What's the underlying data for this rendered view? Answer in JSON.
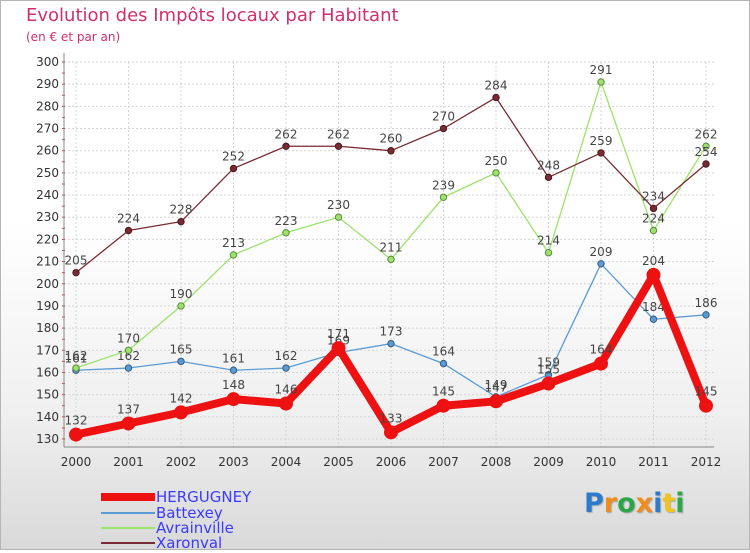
{
  "title": "Evolution des Impôts locaux par Habitant",
  "subtitle": "(en € et par an)",
  "brand": {
    "text": "Proxiti",
    "letters": [
      "P",
      "r",
      "o",
      "x",
      "i",
      "t",
      "i"
    ],
    "colors": [
      "#2c7ac9",
      "#f08c1e",
      "#2ca64b",
      "#f08c1e",
      "#2c7ac9",
      "#f0c31e",
      "#2ca64b"
    ]
  },
  "chart_data": {
    "type": "line",
    "title": "Evolution des Impôts locaux par Habitant",
    "subtitle": "(en € et par an)",
    "xlabel": "",
    "ylabel": "",
    "ylim": [
      130,
      300
    ],
    "ytick_step": 10,
    "grid": true,
    "x": [
      "2000",
      "2001",
      "2002",
      "2003",
      "2004",
      "2005",
      "2006",
      "2007",
      "2008",
      "2009",
      "2010",
      "2011",
      "2012"
    ],
    "series": [
      {
        "name": "HERGUGNEY",
        "color": "#ee1111",
        "emphasis": true,
        "values": [
          132,
          137,
          142,
          148,
          146,
          171,
          133,
          145,
          147,
          155,
          164,
          204,
          145
        ]
      },
      {
        "name": "Battexey",
        "color": "#5b9bd5",
        "emphasis": false,
        "values": [
          161,
          162,
          165,
          161,
          162,
          169,
          173,
          164,
          149,
          159,
          209,
          184,
          186
        ]
      },
      {
        "name": "Avrainville",
        "color": "#9be36a",
        "emphasis": false,
        "values": [
          162,
          170,
          190,
          213,
          223,
          230,
          211,
          239,
          250,
          214,
          291,
          224,
          262
        ]
      },
      {
        "name": "Xaronval",
        "color": "#7a2a33",
        "emphasis": false,
        "values": [
          205,
          224,
          228,
          252,
          262,
          262,
          260,
          270,
          284,
          248,
          259,
          234,
          254
        ]
      }
    ]
  }
}
